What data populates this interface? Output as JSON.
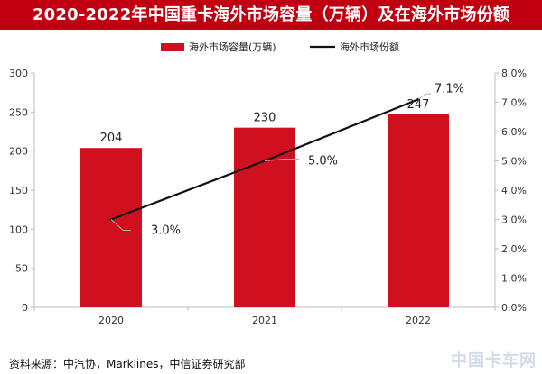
{
  "title": "2020-2022年中国重卡海外市场容量（万辆）及在海外市场份额",
  "colors": {
    "bar": "#d0101f",
    "line": "#111111",
    "title_bg": "#c00010",
    "axis": "#bdbdbd"
  },
  "chart_data": {
    "type": "bar",
    "categories": [
      "2020",
      "2021",
      "2022"
    ],
    "series": [
      {
        "name": "海外市场容量(万辆)",
        "type": "bar",
        "axis": "left",
        "values": [
          204,
          230,
          247
        ]
      },
      {
        "name": "海外市场份额",
        "type": "line",
        "axis": "right",
        "values": [
          3.0,
          5.0,
          7.1
        ]
      }
    ],
    "bar_labels": [
      "204",
      "230",
      "247"
    ],
    "line_labels": [
      "3.0%",
      "5.0%",
      "7.1%"
    ],
    "y_left": {
      "min": 0,
      "max": 300,
      "step": 50,
      "ticks": [
        "0",
        "50",
        "100",
        "150",
        "200",
        "250",
        "300"
      ]
    },
    "y_right": {
      "min": 0,
      "max": 8,
      "step": 1,
      "ticks": [
        "0.0%",
        "1.0%",
        "2.0%",
        "3.0%",
        "4.0%",
        "5.0%",
        "6.0%",
        "7.0%",
        "8.0%"
      ]
    },
    "legend": {
      "position": "top-center",
      "items": [
        {
          "label": "海外市场容量(万辆)",
          "kind": "bar"
        },
        {
          "label": "海外市场份额",
          "kind": "line"
        }
      ]
    },
    "grid": false
  },
  "source": "资料来源：中汽协，Marklines，中信证券研究部",
  "watermark": "中国卡车网"
}
